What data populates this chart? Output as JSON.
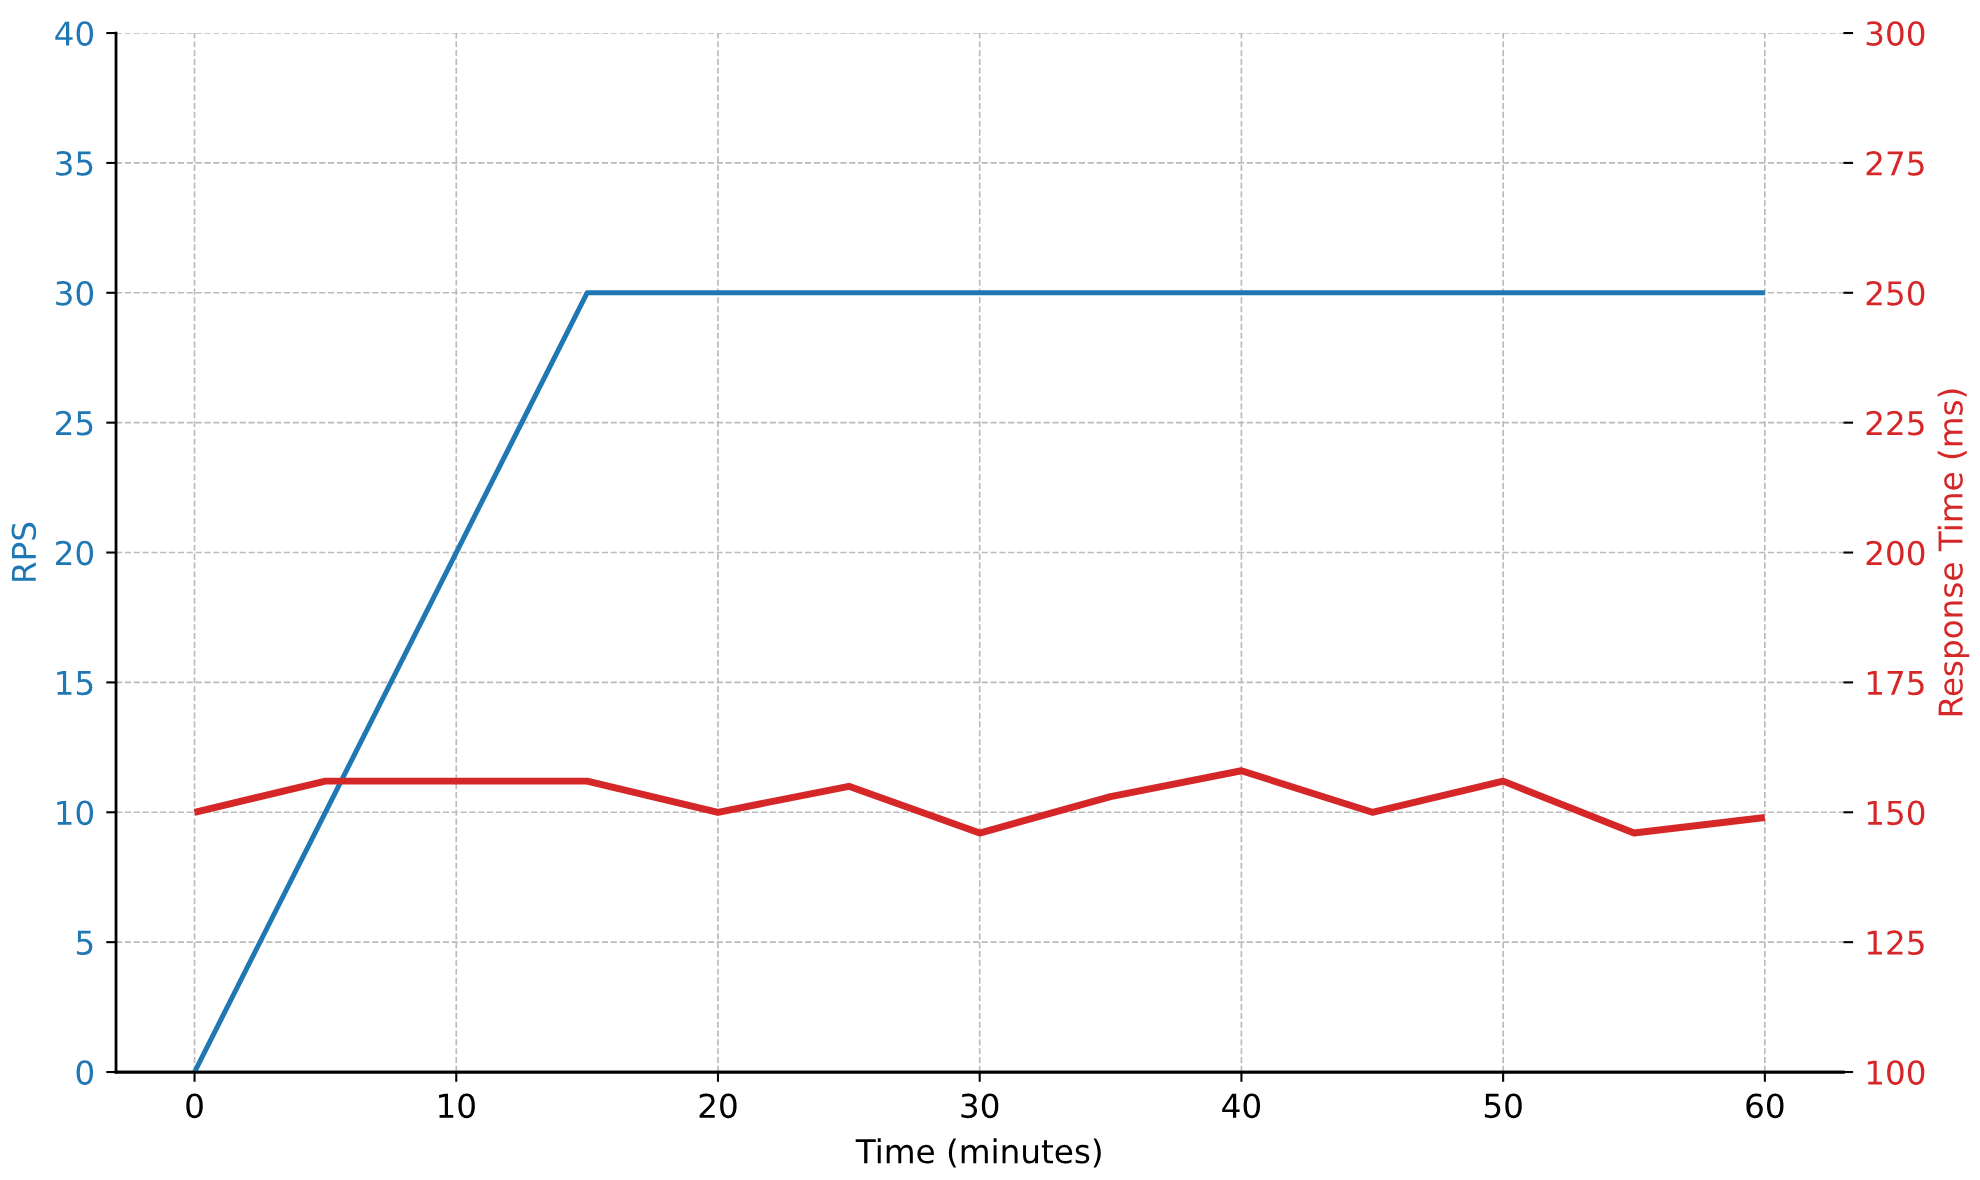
{
  "chart_data": {
    "type": "line",
    "xlabel": "Time (minutes)",
    "ylabel": "RPS",
    "y2label": "Response Time (ms)",
    "x": [
      0,
      5,
      10,
      15,
      20,
      25,
      30,
      35,
      40,
      45,
      50,
      55,
      60
    ],
    "series": [
      {
        "color": "#1f77b4",
        "values": [
          0,
          10,
          20,
          30,
          30,
          30,
          30,
          30,
          30,
          30,
          30,
          30,
          30
        ]
      },
      {
        "color": "#d62728",
        "axis": "y2",
        "values": [
          150,
          156,
          156,
          156,
          150,
          155,
          146,
          153,
          158,
          150,
          156,
          146,
          149
        ]
      }
    ],
    "xlim": [
      -3,
      63
    ],
    "xticks": [
      0,
      10,
      20,
      30,
      40,
      50,
      60
    ],
    "ylim": [
      0,
      40
    ],
    "yticks": [
      0,
      5,
      10,
      15,
      20,
      25,
      30,
      35,
      40
    ],
    "y2lim": [
      100,
      300
    ],
    "y2ticks": [
      100,
      125,
      150,
      175,
      200,
      225,
      250,
      275,
      300
    ],
    "grid": true,
    "line_style": "solid",
    "marker": "none"
  }
}
